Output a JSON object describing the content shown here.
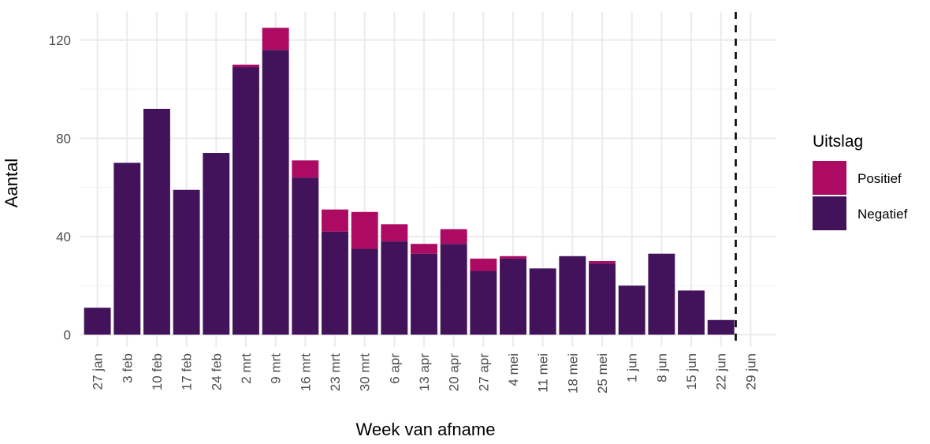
{
  "chart_data": {
    "type": "stacked_bar",
    "x_label": "Week van afname",
    "y_label": "Aantal",
    "legend_title": "Uitslag",
    "legend": "right",
    "categories": [
      "27 jan",
      "3 feb",
      "10 feb",
      "17 feb",
      "24 feb",
      "2 mrt",
      "9 mrt",
      "16 mrt",
      "23 mrt",
      "30 mrt",
      "6 apr",
      "13 apr",
      "20 apr",
      "27 apr",
      "4 mei",
      "11 mei",
      "18 mei",
      "25 mei",
      "1 jun",
      "8 jun",
      "15 jun",
      "22 jun",
      "29 jun"
    ],
    "series": [
      {
        "name": "Positief",
        "color": "#ad0a63",
        "values": [
          0,
          0,
          0,
          0,
          0,
          1,
          9,
          7,
          9,
          15,
          7,
          4,
          6,
          5,
          1,
          0,
          0,
          1,
          0,
          0,
          0,
          0,
          null
        ]
      },
      {
        "name": "Negatief",
        "color": "#42135a",
        "values": [
          11,
          70,
          92,
          59,
          74,
          109,
          116,
          64,
          42,
          35,
          38,
          33,
          37,
          26,
          31,
          27,
          32,
          29,
          20,
          33,
          18,
          6,
          null
        ]
      }
    ],
    "ylim": [
      -5,
      131.5
    ],
    "yticks": [
      0,
      40,
      80,
      120
    ],
    "grid": true
  }
}
